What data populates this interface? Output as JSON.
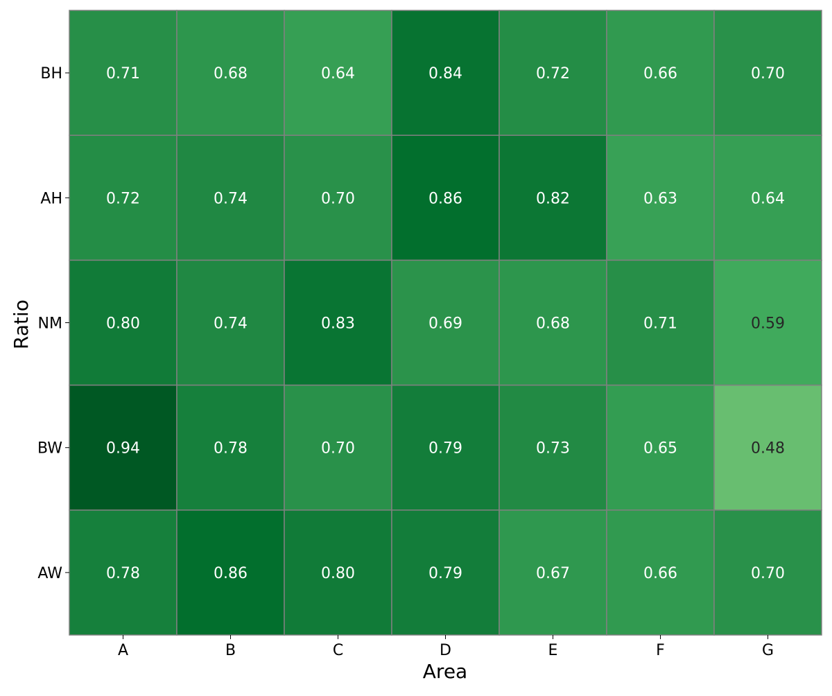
{
  "chart_data": {
    "type": "heatmap",
    "title": "",
    "xlabel": "Area",
    "ylabel": "Ratio",
    "x_categories": [
      "A",
      "B",
      "C",
      "D",
      "E",
      "F",
      "G"
    ],
    "y_categories": [
      "BH",
      "AH",
      "NM",
      "BW",
      "AW"
    ],
    "values": [
      [
        0.71,
        0.68,
        0.64,
        0.84,
        0.72,
        0.66,
        0.7
      ],
      [
        0.72,
        0.74,
        0.7,
        0.86,
        0.82,
        0.63,
        0.64
      ],
      [
        0.8,
        0.74,
        0.83,
        0.69,
        0.68,
        0.71,
        0.59
      ],
      [
        0.94,
        0.78,
        0.7,
        0.79,
        0.73,
        0.65,
        0.48
      ],
      [
        0.78,
        0.86,
        0.8,
        0.79,
        0.67,
        0.66,
        0.7
      ]
    ],
    "value_format": "0.00",
    "colormap": "Greens",
    "grid": false,
    "cell_border_color": "#808080",
    "label_color_light": "#ffffff",
    "label_color_dark": "#262626"
  }
}
